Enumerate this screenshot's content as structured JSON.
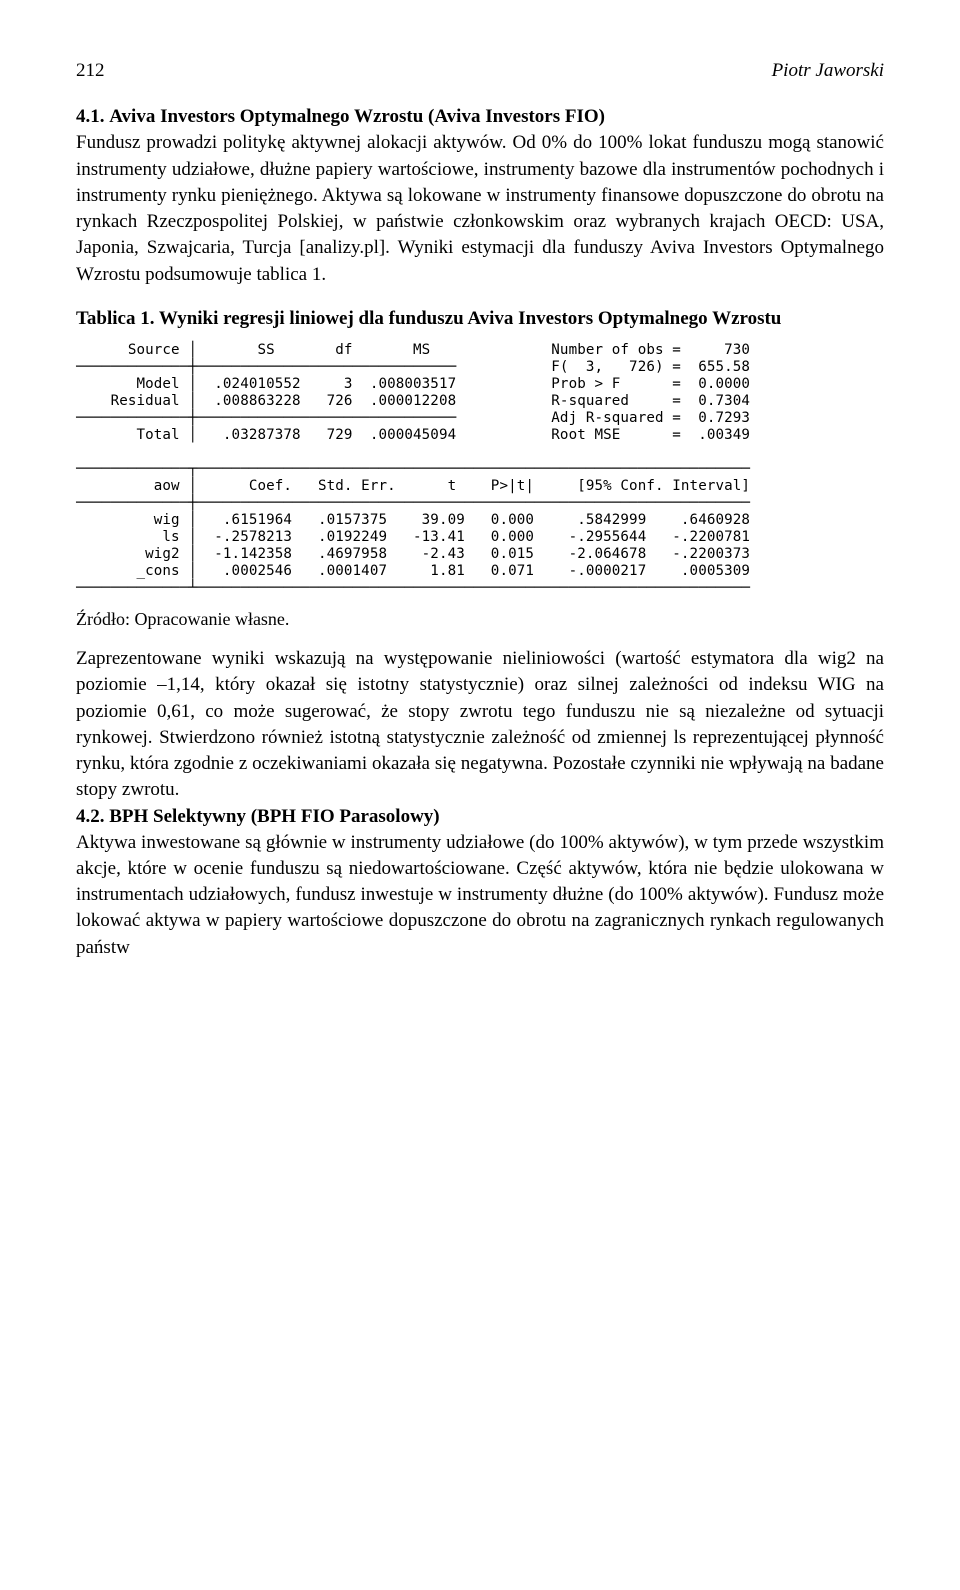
{
  "header": {
    "page_number": "212",
    "running_head": "Piotr Jaworski"
  },
  "section_4_1": {
    "number": "4.1.",
    "title": "Aviva Investors Optymalnego Wzrostu (Aviva Investors FIO)",
    "paragraph": "Fundusz prowadzi politykę aktywnej alokacji aktywów. Od 0% do 100% lokat funduszu mogą stanowić instrumenty udziałowe, dłużne pa­piery wartościowe, instrumenty bazowe dla instrumentów pochodnych i instrumenty rynku pieniężnego. Aktywa są lokowane w instrumenty fi­nansowe dopuszczone do obrotu na rynkach Rzeczpospolitej Polskiej, w państwie członkowskim oraz wybranych krajach OECD: USA, Japonia, Szwajcaria, Turcja [analizy.pl]. Wyniki estymacji dla funduszy Aviva Investors Optymalnego Wzrostu podsumowuje tablica 1."
  },
  "table1": {
    "caption": "Tablica 1. Wyniki regresji liniowej dla funduszu Aviva Investors Optymal­nego Wzrostu",
    "source_note": "Źródło: Opracowanie własne.",
    "anova": {
      "columns": [
        "Source",
        "SS",
        "df",
        "MS"
      ],
      "rows": [
        [
          "Model",
          ".024010552",
          "3",
          ".008003517"
        ],
        [
          "Residual",
          ".008863228",
          "726",
          ".000012208"
        ],
        [
          "Total",
          ".03287378",
          "729",
          ".000045094"
        ]
      ]
    },
    "fit_stats": [
      [
        "Number of obs",
        "=",
        "730"
      ],
      [
        "F(  3,   726)",
        "=",
        "655.58"
      ],
      [
        "Prob > F",
        "=",
        "0.0000"
      ],
      [
        "R-squared",
        "=",
        "0.7304"
      ],
      [
        "Adj R-squared",
        "=",
        "0.7293"
      ],
      [
        "Root MSE",
        "=",
        ".00349"
      ]
    ],
    "coef": {
      "dep_var": "aow",
      "columns": [
        "Coef.",
        "Std. Err.",
        "t",
        "P>|t|",
        "[95% Conf.",
        "Interval]"
      ],
      "rows": [
        [
          "wig",
          ".6151964",
          ".0157375",
          "39.09",
          "0.000",
          ".5842999",
          ".6460928"
        ],
        [
          "ls",
          "-.2578213",
          ".0192249",
          "-13.41",
          "0.000",
          "-.2955644",
          "-.2200781"
        ],
        [
          "wig2",
          "-1.142358",
          ".4697958",
          "-2.43",
          "0.015",
          "-2.064678",
          "-.2200373"
        ],
        [
          "_cons",
          ".0002546",
          ".0001407",
          "1.81",
          "0.071",
          "-.0000217",
          ".0005309"
        ]
      ]
    }
  },
  "discussion": {
    "paragraph": "Zaprezentowane wyniki wskazują na występowanie nieliniowości (wartość estymatora dla wig2 na poziomie –1,14, który okazał się istotny statystycznie) oraz silnej zależności od indeksu WIG na poziomie 0,61, co może sugerować, że stopy zwrotu tego funduszu nie są niezależne od sy­tuacji rynkowej. Stwierdzono również istotną statystycznie zależność od zmiennej ls reprezentującej płynność rynku, która zgodnie z oczekiwania­mi okazała się negatywna. Pozostałe czynniki nie wpływają na badane stopy zwrotu."
  },
  "section_4_2": {
    "number": "4.2.",
    "title": "BPH Selektywny (BPH FIO Parasolowy)",
    "paragraph": "Aktywa inwestowane są głównie w instrumenty udziałowe (do 100% aktywów), w tym przede wszystkim akcje, które w ocenie funduszu są niedowartościowane. Część aktywów, która nie będzie ulokowana w in­strumentach udziałowych, fundusz inwestuje w instrumenty dłużne (do 100% aktywów). Fundusz może lokować aktywa w papiery wartościowe dopuszczone do obrotu na zagranicznych rynkach regulowanych państw"
  },
  "stata_text": "      Source │       SS       df       MS              Number of obs =     730\n─────────────┼──────────────────────────────           F(  3,   726) =  655.58\n       Model │  .024010552     3  .008003517           Prob > F      =  0.0000\n    Residual │  .008863228   726  .000012208           R-squared     =  0.7304\n─────────────┼──────────────────────────────           Adj R-squared =  0.7293\n       Total │   .03287378   729  .000045094           Root MSE      =  .00349\n\n─────────────┬────────────────────────────────────────────────────────────────\n         aow │      Coef.   Std. Err.      t    P>|t|     [95% Conf. Interval]\n─────────────┼────────────────────────────────────────────────────────────────\n         wig │   .6151964   .0157375    39.09   0.000     .5842999    .6460928\n          ls │  -.2578213   .0192249   -13.41   0.000    -.2955644   -.2200781\n        wig2 │  -1.142358   .4697958    -2.43   0.015    -2.064678   -.2200373\n       _cons │   .0002546   .0001407     1.81   0.071    -.0000217    .0005309\n─────────────┴────────────────────────────────────────────────────────────────"
}
